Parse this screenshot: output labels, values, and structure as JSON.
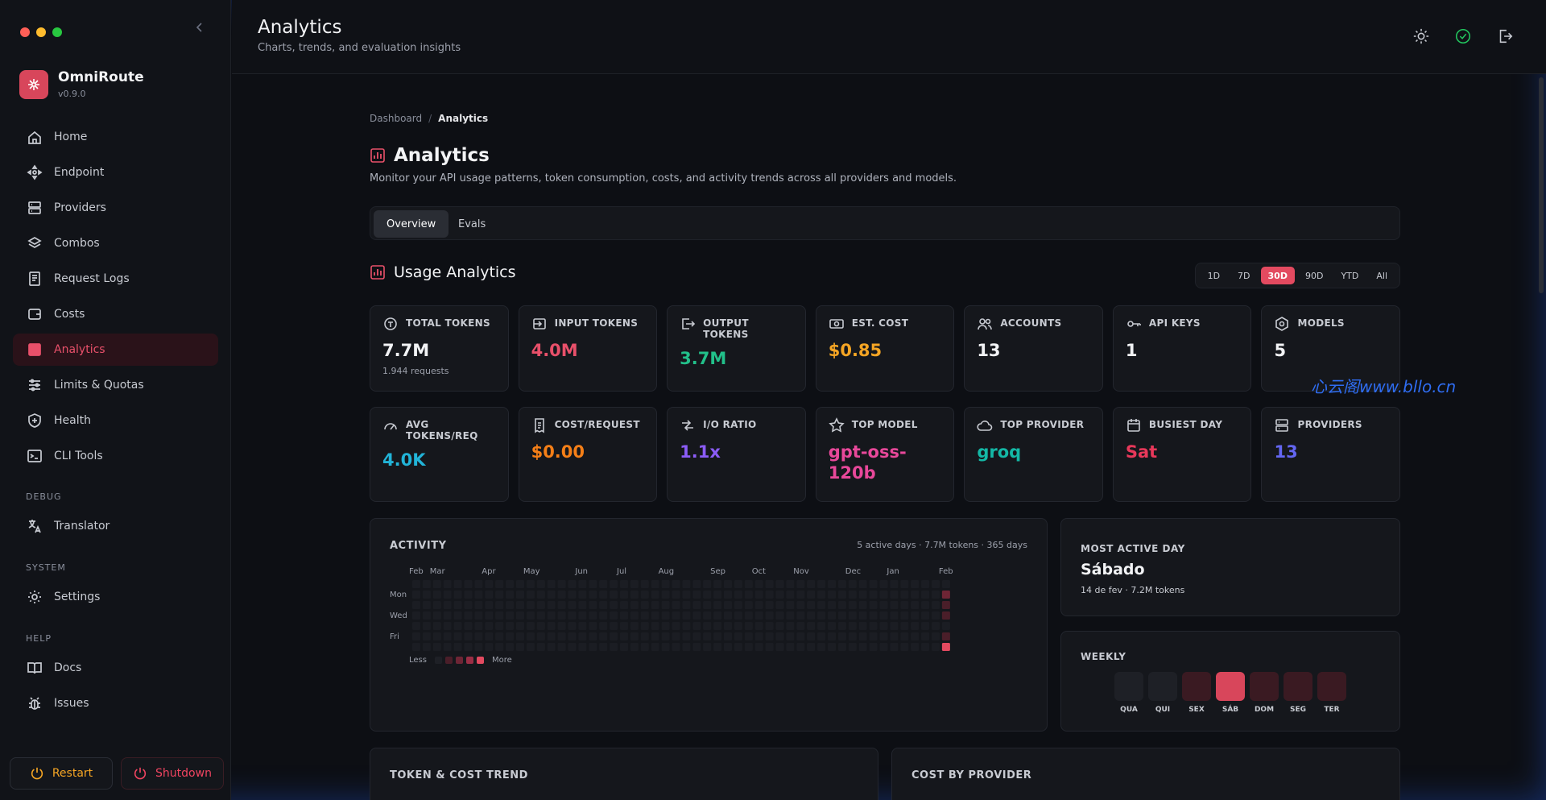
{
  "sidebar": {
    "brand": {
      "name": "OmniRoute",
      "version": "v0.9.0"
    },
    "nav": [
      {
        "label": "Home",
        "icon": "home-icon"
      },
      {
        "label": "Endpoint",
        "icon": "endpoint-icon"
      },
      {
        "label": "Providers",
        "icon": "server-icon"
      },
      {
        "label": "Combos",
        "icon": "layers-icon"
      },
      {
        "label": "Request Logs",
        "icon": "logs-icon"
      },
      {
        "label": "Costs",
        "icon": "wallet-icon"
      },
      {
        "label": "Analytics",
        "icon": "analytics-icon",
        "active": true
      },
      {
        "label": "Limits & Quotas",
        "icon": "sliders-icon"
      },
      {
        "label": "Health",
        "icon": "shield-icon"
      },
      {
        "label": "CLI Tools",
        "icon": "terminal-icon"
      }
    ],
    "debug_label": "DEBUG",
    "debug_items": [
      {
        "label": "Translator",
        "icon": "translate-icon"
      }
    ],
    "system_label": "SYSTEM",
    "system_items": [
      {
        "label": "Settings",
        "icon": "gear-icon"
      }
    ],
    "help_label": "HELP",
    "help_items": [
      {
        "label": "Docs",
        "icon": "book-icon"
      },
      {
        "label": "Issues",
        "icon": "bug-icon"
      }
    ],
    "restart_label": "Restart",
    "shutdown_label": "Shutdown"
  },
  "header": {
    "title": "Analytics",
    "subtitle": "Charts, trends, and evaluation insights"
  },
  "breadcrumb": {
    "parent": "Dashboard",
    "current": "Analytics"
  },
  "page": {
    "title": "Analytics",
    "description": "Monitor your API usage patterns, token consumption, costs, and activity trends across all providers and models."
  },
  "tabs": [
    {
      "label": "Overview",
      "active": true
    },
    {
      "label": "Evals"
    }
  ],
  "usage": {
    "title": "Usage Analytics",
    "ranges": [
      "1D",
      "7D",
      "30D",
      "90D",
      "YTD",
      "All"
    ],
    "active_range": "30D"
  },
  "stats_row1": [
    {
      "label": "TOTAL TOKENS",
      "value": "7.7M",
      "sub": "1.944 requests",
      "color": "#f2f3f5",
      "icon": "tokens-icon"
    },
    {
      "label": "INPUT TOKENS",
      "value": "4.0M",
      "color": "#e8506a",
      "icon": "input-icon"
    },
    {
      "label": "OUTPUT TOKENS",
      "value": "3.7M",
      "color": "#22c08a",
      "icon": "output-icon"
    },
    {
      "label": "EST. COST",
      "value": "$0.85",
      "color": "#f5a524",
      "icon": "money-icon"
    },
    {
      "label": "ACCOUNTS",
      "value": "13",
      "color": "#f2f3f5",
      "icon": "users-icon"
    },
    {
      "label": "API KEYS",
      "value": "1",
      "color": "#f2f3f5",
      "icon": "key-icon"
    },
    {
      "label": "MODELS",
      "value": "5",
      "color": "#f2f3f5",
      "icon": "models-icon"
    }
  ],
  "stats_row2": [
    {
      "label": "AVG TOKENS/REQ",
      "value": "4.0K",
      "color": "#22b4d8",
      "icon": "gauge-icon"
    },
    {
      "label": "COST/REQUEST",
      "value": "$0.00",
      "color": "#f57f17",
      "icon": "receipt-icon"
    },
    {
      "label": "I/O RATIO",
      "value": "1.1x",
      "color": "#8b5cf6",
      "icon": "ratio-icon"
    },
    {
      "label": "TOP MODEL",
      "value": "gpt-oss-120b",
      "color": "#e8489a",
      "icon": "star-icon"
    },
    {
      "label": "TOP PROVIDER",
      "value": "groq",
      "color": "#14b8a6",
      "icon": "cloud-icon"
    },
    {
      "label": "BUSIEST DAY",
      "value": "Sat",
      "color": "#e8385a",
      "icon": "calendar-icon"
    },
    {
      "label": "PROVIDERS",
      "value": "13",
      "color": "#6366f1",
      "icon": "server-icon"
    }
  ],
  "activity": {
    "title": "ACTIVITY",
    "meta": "5 active days · 7.7M tokens · 365 days",
    "months": [
      "Feb",
      "Mar",
      "Apr",
      "May",
      "Jun",
      "Jul",
      "Aug",
      "Sep",
      "Oct",
      "Nov",
      "Dec",
      "Jan",
      "Feb"
    ],
    "day_labels": [
      "Mon",
      "Wed",
      "Fri"
    ],
    "legend_less": "Less",
    "legend_more": "More",
    "active_cells": [
      {
        "week": 51,
        "day": 1,
        "level": 2
      },
      {
        "week": 51,
        "day": 2,
        "level": 1
      },
      {
        "week": 51,
        "day": 3,
        "level": 1
      },
      {
        "week": 51,
        "day": 5,
        "level": 1
      },
      {
        "week": 51,
        "day": 6,
        "level": 4
      }
    ]
  },
  "most_active": {
    "title": "MOST ACTIVE DAY",
    "day": "Sábado",
    "detail": "14 de fev · 7.2M tokens"
  },
  "weekly": {
    "title": "WEEKLY",
    "days": [
      {
        "label": "QUA",
        "level": 0
      },
      {
        "label": "QUI",
        "level": 0
      },
      {
        "label": "SEX",
        "level": 1
      },
      {
        "label": "SÁB",
        "level": 4
      },
      {
        "label": "DOM",
        "level": 1
      },
      {
        "label": "SEG",
        "level": 1
      },
      {
        "label": "TER",
        "level": 1
      }
    ]
  },
  "panels": {
    "token_cost_trend": "TOKEN & COST TREND",
    "cost_by_provider": "COST BY PROVIDER"
  },
  "watermark": "心云阁www.bllo.cn",
  "colors": {
    "accent": "#e34a60",
    "bg": "#0d0f14",
    "card": "#15171c"
  }
}
